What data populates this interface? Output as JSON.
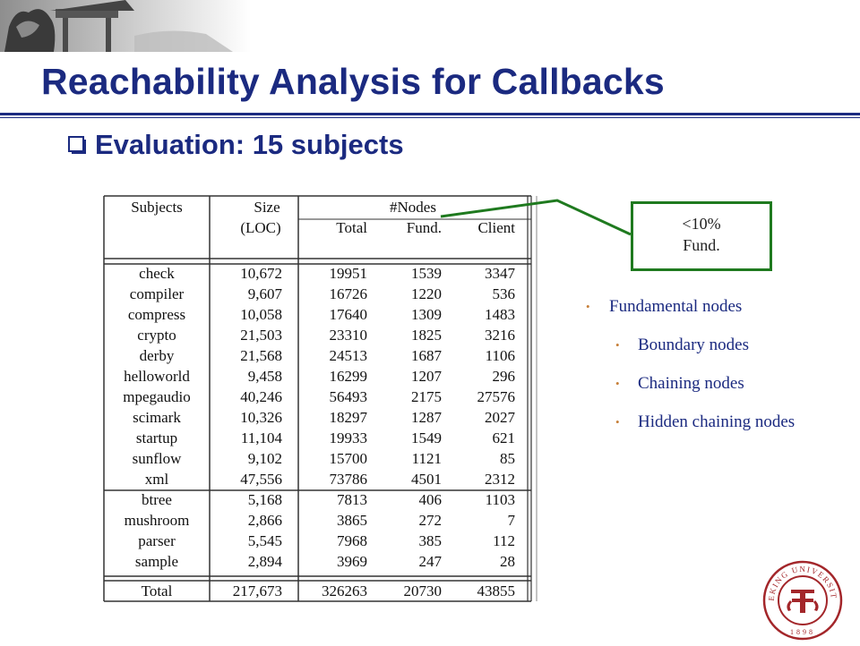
{
  "title": "Reachability Analysis for Callbacks",
  "subtitle": "Evaluation: 15 subjects",
  "table": {
    "headers": {
      "subjects": "Subjects",
      "size": "Size",
      "size_unit": "(LOC)",
      "nodes_group": "#Nodes",
      "total": "Total",
      "fund": "Fund.",
      "client": "Client"
    },
    "rows": [
      [
        "check",
        "10,672",
        "19951",
        "1539",
        "3347"
      ],
      [
        "compiler",
        "9,607",
        "16726",
        "1220",
        "536"
      ],
      [
        "compress",
        "10,058",
        "17640",
        "1309",
        "1483"
      ],
      [
        "crypto",
        "21,503",
        "23310",
        "1825",
        "3216"
      ],
      [
        "derby",
        "21,568",
        "24513",
        "1687",
        "1106"
      ],
      [
        "helloworld",
        "9,458",
        "16299",
        "1207",
        "296"
      ],
      [
        "mpegaudio",
        "40,246",
        "56493",
        "2175",
        "27576"
      ],
      [
        "scimark",
        "10,326",
        "18297",
        "1287",
        "2027"
      ],
      [
        "startup",
        "11,104",
        "19933",
        "1549",
        "621"
      ],
      [
        "sunflow",
        "9,102",
        "15700",
        "1121",
        "85"
      ],
      [
        "xml",
        "47,556",
        "73786",
        "4501",
        "2312"
      ],
      [
        "btree",
        "5,168",
        "7813",
        "406",
        "1103"
      ],
      [
        "mushroom",
        "2,866",
        "3865",
        "272",
        "7"
      ],
      [
        "parser",
        "5,545",
        "7968",
        "385",
        "112"
      ],
      [
        "sample",
        "2,894",
        "3969",
        "247",
        "28"
      ]
    ],
    "total_row": [
      "Total",
      "217,673",
      "326263",
      "20730",
      "43855"
    ]
  },
  "callout": {
    "line1": "<10%",
    "line2": "Fund."
  },
  "bullets": {
    "main": "Fundamental nodes",
    "sub": [
      "Boundary nodes",
      "Chaining nodes",
      "Hidden chaining nodes"
    ]
  },
  "seal": {
    "text": "PEKING UNIVERSITY",
    "year": "1898"
  },
  "colors": {
    "title": "#1b2a80",
    "callout_border": "#1f7a1f",
    "bullet_dot": "#c7803a",
    "seal": "#a3262a"
  }
}
